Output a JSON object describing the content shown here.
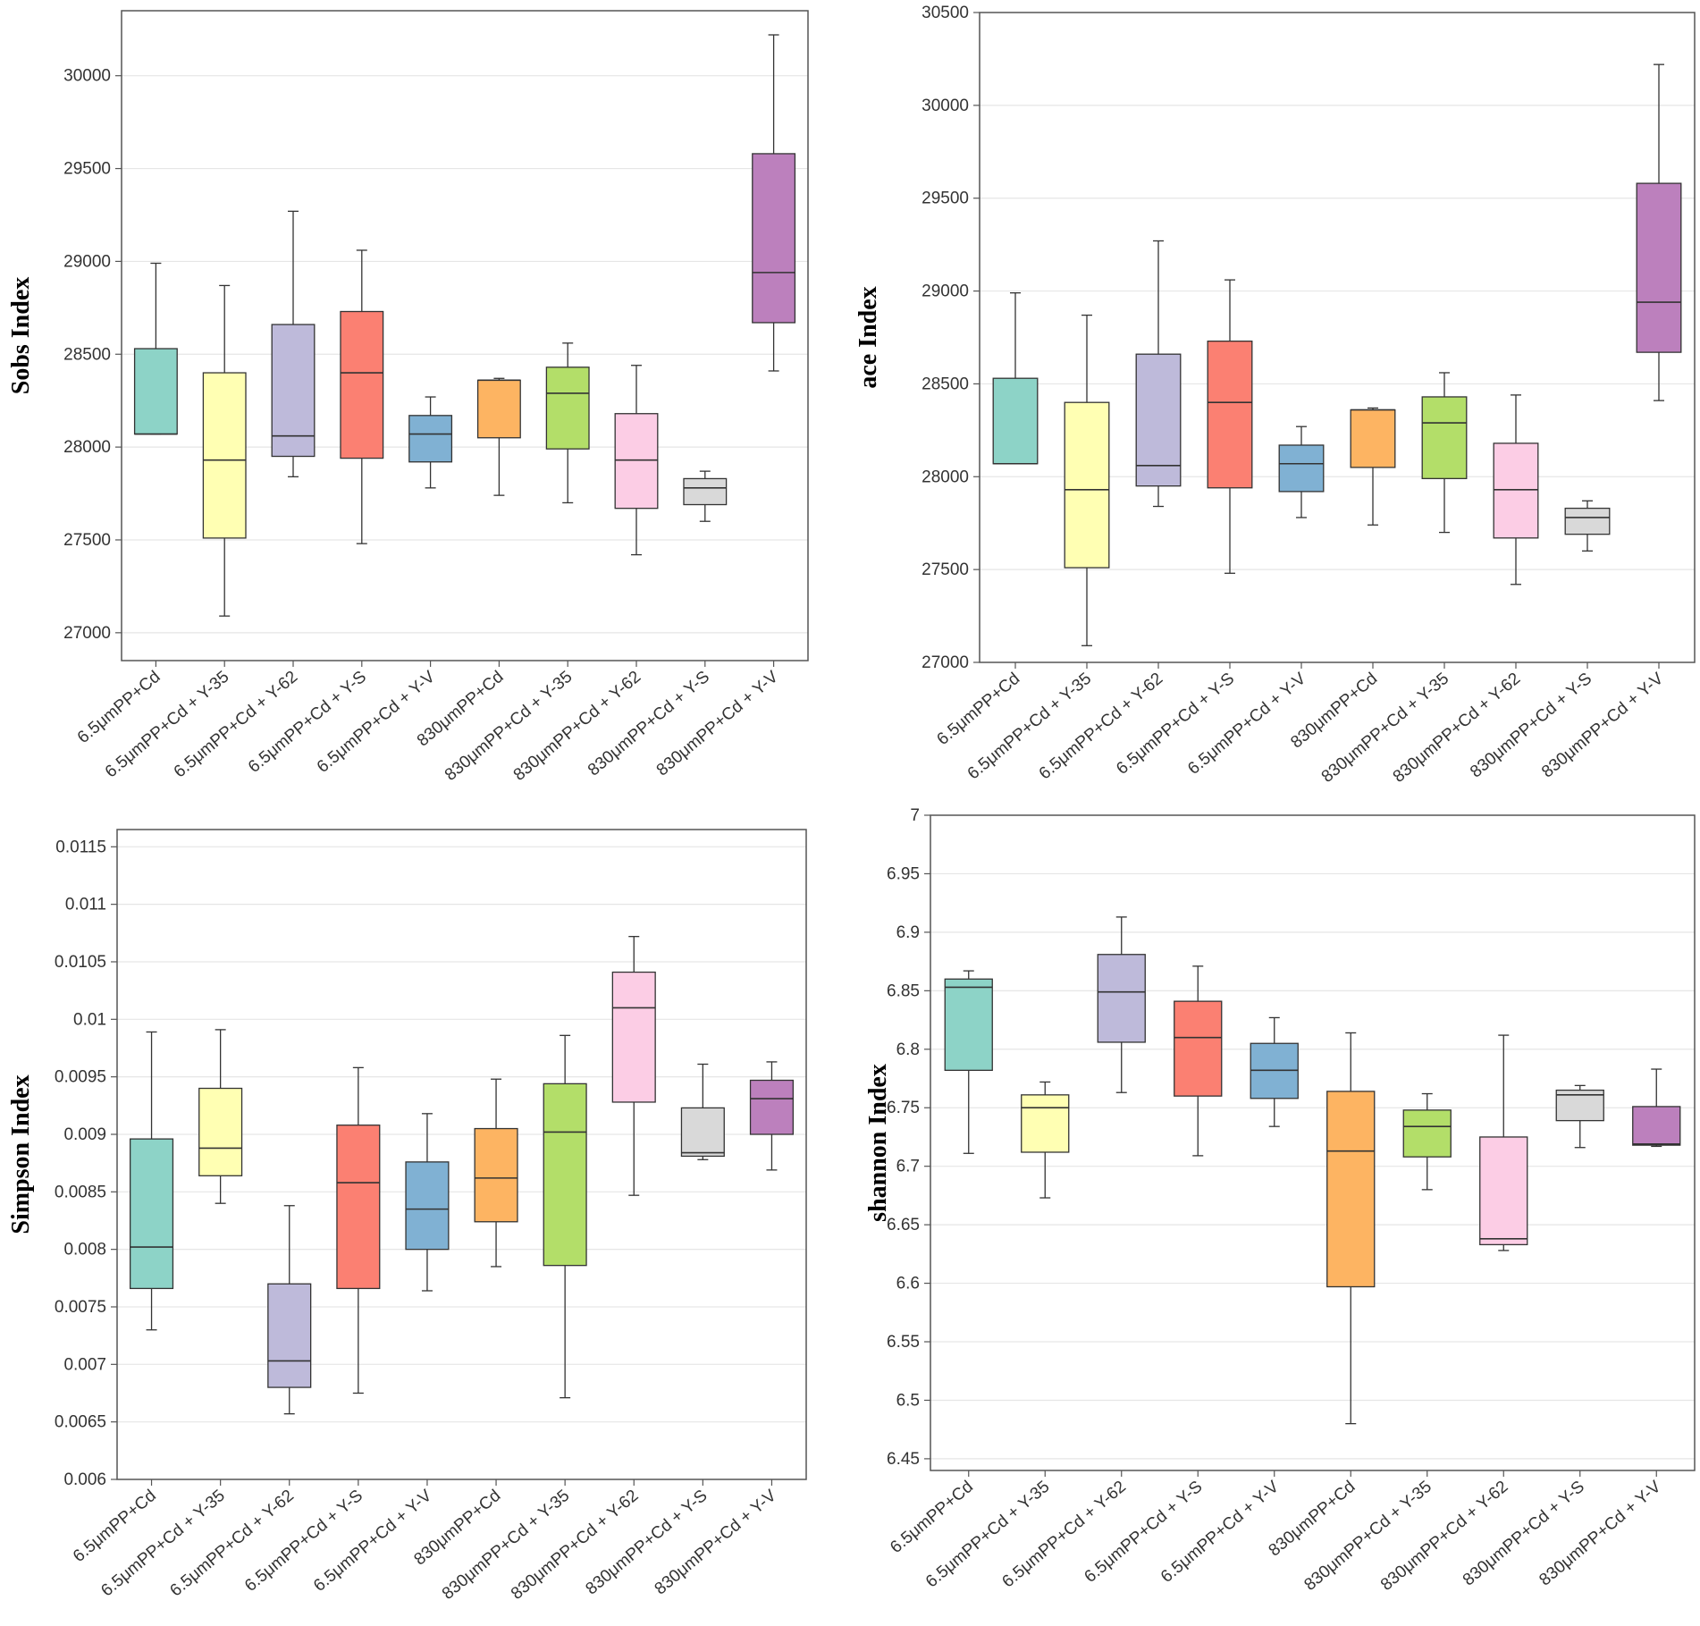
{
  "colors": [
    "#8dd3c7",
    "#ffffb3",
    "#bebada",
    "#fb8072",
    "#80b1d3",
    "#fdb462",
    "#b3de69",
    "#fccde5",
    "#d9d9d9",
    "#bc80bd"
  ],
  "chart_data": [
    {
      "type": "box",
      "ylabel": "Sobs  Index",
      "categories": [
        "6.5μmPP+Cd",
        "6.5μmPP+Cd + Y-35",
        "6.5μmPP+Cd + Y-62",
        "6.5μmPP+Cd + Y-S",
        "6.5μmPP+Cd + Y-V",
        "830μmPP+Cd",
        "830μmPP+Cd + Y-35",
        "830μmPP+Cd + Y-62",
        "830μmPP+Cd + Y-S",
        "830μmPP+Cd + Y-V"
      ],
      "ylim": [
        26850,
        30350
      ],
      "yticks": [
        27000,
        27500,
        28000,
        28500,
        29000,
        29500,
        30000
      ],
      "ytick_labels": [
        "27000",
        "27500",
        "28000",
        "28500",
        "29000",
        "29500",
        "30000"
      ],
      "boxes": [
        {
          "min": 28070,
          "q1": 28070,
          "median": 28070,
          "q3": 28530,
          "max": 28990
        },
        {
          "min": 27090,
          "q1": 27510,
          "median": 27930,
          "q3": 28400,
          "max": 28870
        },
        {
          "min": 27840,
          "q1": 27950,
          "median": 28060,
          "q3": 28660,
          "max": 29270
        },
        {
          "min": 27480,
          "q1": 27940,
          "median": 28400,
          "q3": 28730,
          "max": 29060
        },
        {
          "min": 27780,
          "q1": 27920,
          "median": 28070,
          "q3": 28170,
          "max": 28270
        },
        {
          "min": 27740,
          "q1": 28050,
          "median": 28360,
          "q3": 28360,
          "max": 28370
        },
        {
          "min": 27700,
          "q1": 27990,
          "median": 28290,
          "q3": 28430,
          "max": 28560
        },
        {
          "min": 27420,
          "q1": 27670,
          "median": 27930,
          "q3": 28180,
          "max": 28440
        },
        {
          "min": 27600,
          "q1": 27690,
          "median": 27780,
          "q3": 27830,
          "max": 27870
        },
        {
          "min": 28410,
          "q1": 28670,
          "median": 28940,
          "q3": 29580,
          "max": 30220
        }
      ]
    },
    {
      "type": "box",
      "ylabel": "ace Index",
      "categories": [
        "6.5μmPP+Cd",
        "6.5μmPP+Cd + Y-35",
        "6.5μmPP+Cd + Y-62",
        "6.5μmPP+Cd + Y-S",
        "6.5μmPP+Cd + Y-V",
        "830μmPP+Cd",
        "830μmPP+Cd + Y-35",
        "830μmPP+Cd + Y-62",
        "830μmPP+Cd + Y-S",
        "830μmPP+Cd + Y-V"
      ],
      "ylim": [
        27000,
        30500
      ],
      "yticks": [
        27000,
        27500,
        28000,
        28500,
        29000,
        29500,
        30000,
        30500
      ],
      "ytick_labels": [
        "27000",
        "27500",
        "28000",
        "28500",
        "29000",
        "29500",
        "30000",
        "30500"
      ],
      "boxes": [
        {
          "min": 28070,
          "q1": 28070,
          "median": 28070,
          "q3": 28530,
          "max": 28990
        },
        {
          "min": 27090,
          "q1": 27510,
          "median": 27930,
          "q3": 28400,
          "max": 28870
        },
        {
          "min": 27840,
          "q1": 27950,
          "median": 28060,
          "q3": 28660,
          "max": 29270
        },
        {
          "min": 27480,
          "q1": 27940,
          "median": 28400,
          "q3": 28730,
          "max": 29060
        },
        {
          "min": 27780,
          "q1": 27920,
          "median": 28070,
          "q3": 28170,
          "max": 28270
        },
        {
          "min": 27740,
          "q1": 28050,
          "median": 28360,
          "q3": 28360,
          "max": 28370
        },
        {
          "min": 27700,
          "q1": 27990,
          "median": 28290,
          "q3": 28430,
          "max": 28560
        },
        {
          "min": 27420,
          "q1": 27670,
          "median": 27930,
          "q3": 28180,
          "max": 28440
        },
        {
          "min": 27600,
          "q1": 27690,
          "median": 27780,
          "q3": 27830,
          "max": 27870
        },
        {
          "min": 28410,
          "q1": 28670,
          "median": 28940,
          "q3": 29580,
          "max": 30220
        }
      ]
    },
    {
      "type": "box",
      "ylabel": "Simpson Index",
      "categories": [
        "6.5μmPP+Cd",
        "6.5μmPP+Cd + Y-35",
        "6.5μmPP+Cd + Y-62",
        "6.5μmPP+Cd + Y-S",
        "6.5μmPP+Cd + Y-V",
        "830μmPP+Cd",
        "830μmPP+Cd + Y-35",
        "830μmPP+Cd + Y-62",
        "830μmPP+Cd + Y-S",
        "830μmPP+Cd + Y-V"
      ],
      "ylim": [
        0.006,
        0.01165
      ],
      "yticks": [
        0.006,
        0.0065,
        0.007,
        0.0075,
        0.008,
        0.0085,
        0.009,
        0.0095,
        0.01,
        0.0105,
        0.011,
        0.0115
      ],
      "ytick_labels": [
        "0.006",
        "0.0065",
        "0.007",
        "0.0075",
        "0.008",
        "0.0085",
        "0.009",
        "0.0095",
        "0.01",
        "0.0105",
        "0.011",
        "0.0115"
      ],
      "boxes": [
        {
          "min": 0.0073,
          "q1": 0.00766,
          "median": 0.00802,
          "q3": 0.00896,
          "max": 0.00989
        },
        {
          "min": 0.0084,
          "q1": 0.00864,
          "median": 0.00888,
          "q3": 0.0094,
          "max": 0.00991
        },
        {
          "min": 0.00657,
          "q1": 0.0068,
          "median": 0.00703,
          "q3": 0.0077,
          "max": 0.00838
        },
        {
          "min": 0.00675,
          "q1": 0.00766,
          "median": 0.00858,
          "q3": 0.00908,
          "max": 0.00958
        },
        {
          "min": 0.00764,
          "q1": 0.008,
          "median": 0.00835,
          "q3": 0.00876,
          "max": 0.00918
        },
        {
          "min": 0.00785,
          "q1": 0.00824,
          "median": 0.00862,
          "q3": 0.00905,
          "max": 0.00948
        },
        {
          "min": 0.00671,
          "q1": 0.00786,
          "median": 0.00902,
          "q3": 0.00944,
          "max": 0.00986
        },
        {
          "min": 0.00847,
          "q1": 0.00928,
          "median": 0.0101,
          "q3": 0.01041,
          "max": 0.01072
        },
        {
          "min": 0.00878,
          "q1": 0.00881,
          "median": 0.00884,
          "q3": 0.00923,
          "max": 0.00961
        },
        {
          "min": 0.00869,
          "q1": 0.009,
          "median": 0.00931,
          "q3": 0.00947,
          "max": 0.00963
        }
      ]
    },
    {
      "type": "box",
      "ylabel": "shannon  Index",
      "categories": [
        "6.5μmPP+Cd",
        "6.5μmPP+Cd + Y-35",
        "6.5μmPP+Cd + Y-62",
        "6.5μmPP+Cd + Y-S",
        "6.5μmPP+Cd + Y-V",
        "830μmPP+Cd",
        "830μmPP+Cd + Y-35",
        "830μmPP+Cd + Y-62",
        "830μmPP+Cd + Y-S",
        "830μmPP+Cd + Y-V"
      ],
      "ylim": [
        6.44,
        7.0
      ],
      "yticks": [
        6.45,
        6.5,
        6.55,
        6.6,
        6.65,
        6.7,
        6.75,
        6.8,
        6.85,
        6.9,
        6.95,
        7.0
      ],
      "ytick_labels": [
        "6.45",
        "6.5",
        "6.55",
        "6.6",
        "6.65",
        "6.7",
        "6.75",
        "6.8",
        "6.85",
        "6.9",
        "6.95",
        "7"
      ],
      "boxes": [
        {
          "min": 6.711,
          "q1": 6.782,
          "median": 6.853,
          "q3": 6.86,
          "max": 6.867
        },
        {
          "min": 6.673,
          "q1": 6.712,
          "median": 6.75,
          "q3": 6.761,
          "max": 6.772
        },
        {
          "min": 6.763,
          "q1": 6.806,
          "median": 6.849,
          "q3": 6.881,
          "max": 6.913
        },
        {
          "min": 6.709,
          "q1": 6.76,
          "median": 6.81,
          "q3": 6.841,
          "max": 6.871
        },
        {
          "min": 6.734,
          "q1": 6.758,
          "median": 6.782,
          "q3": 6.805,
          "max": 6.827
        },
        {
          "min": 6.48,
          "q1": 6.597,
          "median": 6.713,
          "q3": 6.764,
          "max": 6.814
        },
        {
          "min": 6.68,
          "q1": 6.708,
          "median": 6.734,
          "q3": 6.748,
          "max": 6.762
        },
        {
          "min": 6.628,
          "q1": 6.633,
          "median": 6.638,
          "q3": 6.725,
          "max": 6.812
        },
        {
          "min": 6.716,
          "q1": 6.739,
          "median": 6.761,
          "q3": 6.765,
          "max": 6.769
        },
        {
          "min": 6.717,
          "q1": 6.718,
          "median": 6.719,
          "q3": 6.751,
          "max": 6.783
        }
      ]
    }
  ]
}
